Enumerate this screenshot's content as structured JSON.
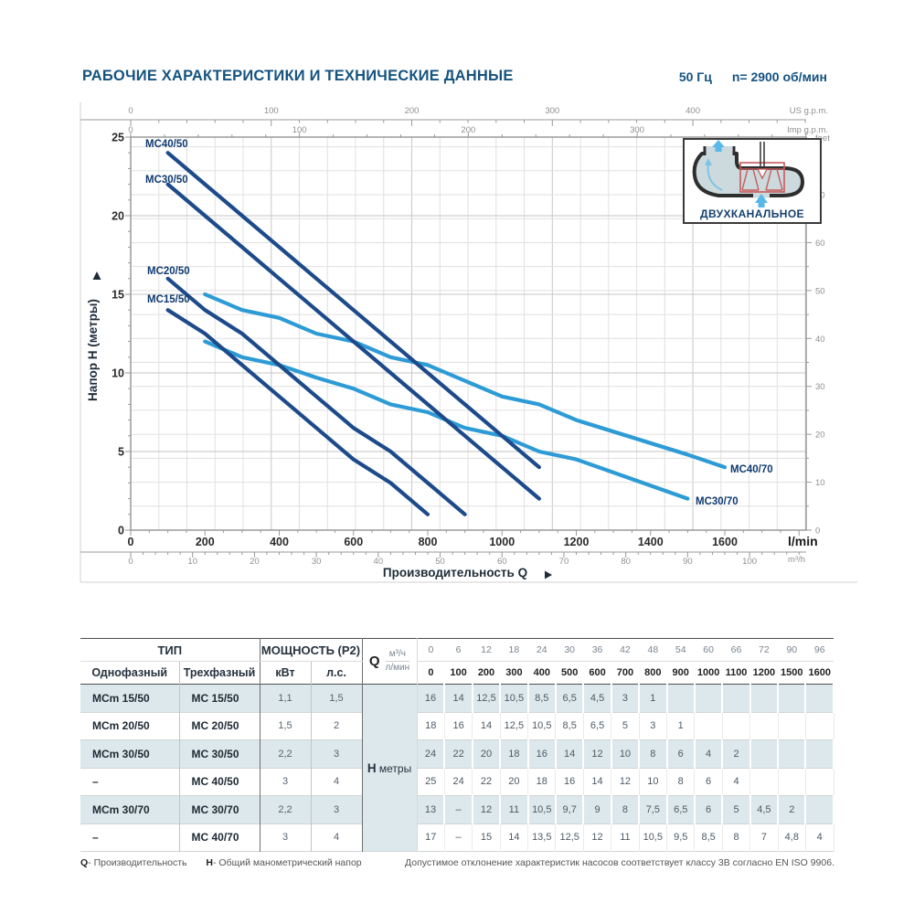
{
  "page": {
    "title": "РАБОЧИЕ ХАРАКТЕРИСТИКИ И ТЕХНИЧЕСКИЕ ДАННЫЕ",
    "frequency": "50 Гц",
    "speed": "n= 2900 об/мин"
  },
  "chart": {
    "ylabel": "Напор Н (метры)",
    "xlabel": "Производительность Q",
    "inset_label": "ДВУХКАНАЛЬНОЕ",
    "colors": {
      "dark_curve": "#1d4a8a",
      "light_curve": "#2d9bd5",
      "grid_minor": "#e0e0e0",
      "grid_major": "#c6c6c6",
      "accent_navy": "#155380"
    }
  },
  "chart_data": {
    "type": "line",
    "title": "Pump performance curves H(Q)",
    "xlabel": "Производительность Q",
    "ylabel": "Напор Н (метры)",
    "xlim_lmin": [
      0,
      1820
    ],
    "ylim_m": [
      0,
      25
    ],
    "grid": true,
    "axes": {
      "lmin": {
        "unit": "l/min",
        "ticks": [
          0,
          200,
          400,
          600,
          800,
          1000,
          1200,
          1400,
          1600
        ]
      },
      "m3h": {
        "unit": "m³/h",
        "ticks": [
          0,
          10,
          20,
          30,
          40,
          50,
          60,
          70,
          80,
          90,
          100
        ]
      },
      "us_gpm": {
        "unit": "US g.p.m.",
        "ticks": [
          0,
          100,
          200,
          300,
          400
        ]
      },
      "imp_gpm": {
        "unit": "Imp g.p.m.",
        "ticks": [
          0,
          100,
          200,
          300
        ]
      },
      "feet": {
        "unit": "feet",
        "ticks": [
          0,
          10,
          20,
          30,
          40,
          50,
          60,
          70
        ]
      },
      "meters": {
        "ticks": [
          0,
          5,
          10,
          15,
          20,
          25
        ]
      }
    },
    "series": [
      {
        "name": "MC40/50",
        "color": "#1d4a8a",
        "points": [
          [
            100,
            24
          ],
          [
            200,
            22
          ],
          [
            300,
            20
          ],
          [
            400,
            18
          ],
          [
            500,
            16
          ],
          [
            600,
            14
          ],
          [
            700,
            12
          ],
          [
            800,
            10
          ],
          [
            900,
            8
          ],
          [
            1000,
            6
          ],
          [
            1100,
            4
          ]
        ]
      },
      {
        "name": "MC30/50",
        "color": "#1d4a8a",
        "points": [
          [
            100,
            22
          ],
          [
            200,
            20
          ],
          [
            300,
            18
          ],
          [
            400,
            16
          ],
          [
            500,
            14
          ],
          [
            600,
            12
          ],
          [
            700,
            10
          ],
          [
            800,
            8
          ],
          [
            900,
            6
          ],
          [
            1000,
            4
          ],
          [
            1100,
            2
          ]
        ]
      },
      {
        "name": "MC20/50",
        "color": "#1d4a8a",
        "points": [
          [
            100,
            16
          ],
          [
            200,
            14
          ],
          [
            300,
            12.5
          ],
          [
            400,
            10.5
          ],
          [
            500,
            8.5
          ],
          [
            600,
            6.5
          ],
          [
            700,
            5
          ],
          [
            800,
            3
          ],
          [
            900,
            1
          ]
        ]
      },
      {
        "name": "MC15/50",
        "color": "#1d4a8a",
        "points": [
          [
            100,
            14
          ],
          [
            200,
            12.5
          ],
          [
            300,
            10.5
          ],
          [
            400,
            8.5
          ],
          [
            500,
            6.5
          ],
          [
            600,
            4.5
          ],
          [
            700,
            3
          ],
          [
            800,
            1
          ]
        ]
      },
      {
        "name": "MC40/70",
        "color": "#2d9bd5",
        "points": [
          [
            200,
            15
          ],
          [
            300,
            14
          ],
          [
            400,
            13.5
          ],
          [
            500,
            12.5
          ],
          [
            600,
            12
          ],
          [
            700,
            11
          ],
          [
            800,
            10.5
          ],
          [
            900,
            9.5
          ],
          [
            1000,
            8.5
          ],
          [
            1100,
            8
          ],
          [
            1200,
            7
          ],
          [
            1500,
            4.8
          ],
          [
            1600,
            4
          ]
        ]
      },
      {
        "name": "MC30/70",
        "color": "#2d9bd5",
        "points": [
          [
            200,
            12
          ],
          [
            300,
            11
          ],
          [
            400,
            10.5
          ],
          [
            500,
            9.7
          ],
          [
            600,
            9
          ],
          [
            700,
            8
          ],
          [
            800,
            7.5
          ],
          [
            900,
            6.5
          ],
          [
            1000,
            6
          ],
          [
            1100,
            5
          ],
          [
            1200,
            4.5
          ],
          [
            1500,
            2
          ]
        ]
      }
    ]
  },
  "table": {
    "header": {
      "tip": "ТИП",
      "single": "Однофазный",
      "three": "Трехфазный",
      "power": "МОЩНОСТЬ (P2)",
      "kw": "кВт",
      "hp": "л.с.",
      "q": "Q",
      "m3h": "м³/ч",
      "lmin": "л/мин",
      "h": "H",
      "h_unit": "метры",
      "q_cols_m3h": [
        "0",
        "6",
        "12",
        "18",
        "24",
        "30",
        "36",
        "42",
        "48",
        "54",
        "60",
        "66",
        "72",
        "90",
        "96"
      ],
      "q_cols_lmin": [
        "0",
        "100",
        "200",
        "300",
        "400",
        "500",
        "600",
        "700",
        "800",
        "900",
        "1000",
        "1100",
        "1200",
        "1500",
        "1600"
      ]
    },
    "rows": [
      {
        "single": "MCm 15/50",
        "three": "MC 15/50",
        "kw": "1,1",
        "hp": "1,5",
        "values": [
          "16",
          "14",
          "12,5",
          "10,5",
          "8,5",
          "6,5",
          "4,5",
          "3",
          "1",
          "",
          "",
          "",
          "",
          "",
          ""
        ]
      },
      {
        "single": "MCm 20/50",
        "three": "MC 20/50",
        "kw": "1,5",
        "hp": "2",
        "values": [
          "18",
          "16",
          "14",
          "12,5",
          "10,5",
          "8,5",
          "6,5",
          "5",
          "3",
          "1",
          "",
          "",
          "",
          "",
          ""
        ]
      },
      {
        "single": "MCm 30/50",
        "three": "MC 30/50",
        "kw": "2,2",
        "hp": "3",
        "values": [
          "24",
          "22",
          "20",
          "18",
          "16",
          "14",
          "12",
          "10",
          "8",
          "6",
          "4",
          "2",
          "",
          "",
          ""
        ]
      },
      {
        "single": "–",
        "three": "MC 40/50",
        "kw": "3",
        "hp": "4",
        "values": [
          "25",
          "24",
          "22",
          "20",
          "18",
          "16",
          "14",
          "12",
          "10",
          "8",
          "6",
          "4",
          "",
          "",
          ""
        ]
      },
      {
        "single": "MCm 30/70",
        "three": "MC 30/70",
        "kw": "2,2",
        "hp": "3",
        "values": [
          "13",
          "–",
          "12",
          "11",
          "10,5",
          "9,7",
          "9",
          "8",
          "7,5",
          "6,5",
          "6",
          "5",
          "4,5",
          "2",
          ""
        ]
      },
      {
        "single": "–",
        "three": "MC 40/70",
        "kw": "3",
        "hp": "4",
        "values": [
          "17",
          "–",
          "15",
          "14",
          "13,5",
          "12,5",
          "12",
          "11",
          "10,5",
          "9,5",
          "8,5",
          "8",
          "7",
          "4,8",
          "4"
        ]
      }
    ]
  },
  "footer": {
    "q_label": "Q",
    "q_text": "- Производительность",
    "h_label": "H",
    "h_text": "- Общий манометрический напор",
    "note": "Допустимое отклонение характеристик насосов соответствует классу 3B согласно EN ISO 9906."
  }
}
